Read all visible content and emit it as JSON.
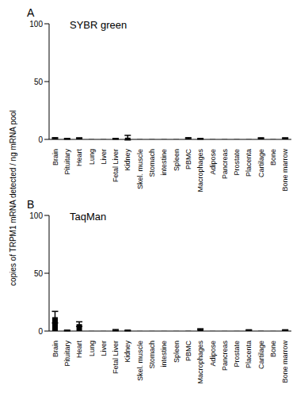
{
  "ylabel": "copies of TRPM1 mRNA detected / ng mRNA pool",
  "chart_data": [
    {
      "type": "bar",
      "panel": "A",
      "title": "SYBR green",
      "categories": [
        "Brain",
        "Pituitary",
        "Heart",
        "Lung",
        "Liver",
        "Fetal Liver",
        "Kidney",
        "Skel. muscle",
        "Stomach",
        "intestine",
        "Spleen",
        "PBMC",
        "Macrophages",
        "Adipose",
        "Pancreas",
        "Prostate",
        "Placenta",
        "Cartilage",
        "Bone",
        "Bone marrow"
      ],
      "values": [
        1,
        0.5,
        1,
        0.2,
        0.2,
        0.5,
        1.5,
        0.2,
        0.2,
        0.2,
        0.2,
        1,
        0.5,
        0.2,
        0.2,
        0.2,
        0.2,
        1,
        0.2,
        1
      ],
      "errors": [
        0.5,
        0.3,
        0.4,
        0,
        0,
        0.3,
        2,
        0,
        0,
        0,
        0,
        0.5,
        0.3,
        0,
        0,
        0,
        0,
        0.4,
        0,
        0.4
      ],
      "color": "#000000",
      "ylim": [
        0,
        100
      ],
      "yticks": [
        0,
        50,
        100
      ]
    },
    {
      "type": "bar",
      "panel": "B",
      "title": "TaqMan",
      "categories": [
        "Brain",
        "Pituitary",
        "Heart",
        "Lung",
        "Liver",
        "Fetal Liver",
        "Kidney",
        "Skel. muscle",
        "Stomach",
        "intestine",
        "Spleen",
        "PBMC",
        "Macrophages",
        "Adipose",
        "Pancreas",
        "Prostate",
        "Placenta",
        "Cartilage",
        "Bone",
        "Bone marrow"
      ],
      "values": [
        12,
        0.5,
        6,
        0.1,
        0.1,
        0.8,
        0.5,
        0.1,
        0.1,
        0.1,
        0.1,
        0.2,
        1.5,
        0.1,
        0.1,
        0.1,
        0.8,
        0.2,
        0.1,
        0.8
      ],
      "errors": [
        5,
        0.3,
        2,
        0,
        0,
        0.5,
        0.3,
        0,
        0,
        0,
        0,
        0,
        0.5,
        0,
        0,
        0,
        0.3,
        0,
        0,
        0.3
      ],
      "color": "#000000",
      "ylim": [
        0,
        100
      ],
      "yticks": [
        0,
        50,
        100
      ]
    }
  ]
}
